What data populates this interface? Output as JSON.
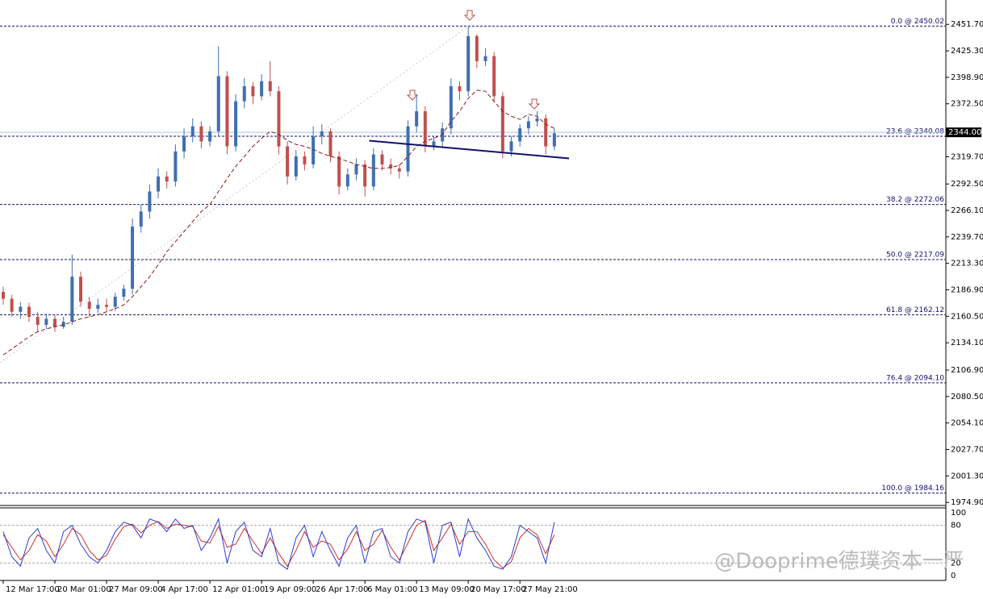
{
  "chart_data": {
    "type": "candlestick",
    "categories": [
      "12 Mar 17:00",
      null,
      null,
      null,
      null,
      null,
      "20 Mar 01:00",
      null,
      null,
      null,
      null,
      null,
      "27 Mar 09:00",
      null,
      null,
      null,
      null,
      null,
      "4 Apr 17:00",
      null,
      null,
      null,
      null,
      null,
      "12 Apr 01:00",
      null,
      null,
      null,
      null,
      null,
      "19 Apr 09:00",
      null,
      null,
      null,
      null,
      null,
      "26 Apr 17:00",
      null,
      null,
      null,
      null,
      null,
      "6 May 01:00",
      null,
      null,
      null,
      null,
      null,
      "13 May 09:00",
      null,
      null,
      null,
      null,
      null,
      "20 May 17:00",
      null,
      null,
      null,
      null,
      null,
      "27 May 21:00",
      null,
      null,
      null,
      null
    ],
    "open": [
      2185,
      2178,
      2165,
      2170,
      2160,
      2152,
      2158,
      2150,
      2155,
      2200,
      2175,
      2168,
      2172,
      2170,
      2180,
      2188,
      2250,
      2265,
      2285,
      2300,
      2295,
      2325,
      2340,
      2350,
      2335,
      2345,
      2400,
      2330,
      2375,
      2390,
      2380,
      2395,
      2385,
      2330,
      2300,
      2320,
      2312,
      2340,
      2345,
      2320,
      2290,
      2302,
      2312,
      2290,
      2322,
      2312,
      2308,
      2305,
      2350,
      2365,
      2330,
      2335,
      2348,
      2390,
      2385,
      2440,
      2415,
      2420,
      2380,
      2325,
      2335,
      2348,
      2355,
      2358,
      2330
    ],
    "high": [
      2190,
      2182,
      2175,
      2174,
      2165,
      2163,
      2162,
      2160,
      2222,
      2205,
      2180,
      2178,
      2178,
      2184,
      2192,
      2258,
      2272,
      2292,
      2308,
      2305,
      2332,
      2348,
      2358,
      2355,
      2350,
      2430,
      2405,
      2382,
      2398,
      2394,
      2402,
      2415,
      2390,
      2335,
      2326,
      2325,
      2350,
      2352,
      2348,
      2325,
      2308,
      2318,
      2316,
      2328,
      2326,
      2318,
      2312,
      2356,
      2382,
      2370,
      2340,
      2354,
      2398,
      2395,
      2450,
      2442,
      2428,
      2424,
      2384,
      2340,
      2352,
      2360,
      2365,
      2362,
      2348
    ],
    "low": [
      2172,
      2160,
      2158,
      2155,
      2145,
      2148,
      2145,
      2148,
      2152,
      2170,
      2160,
      2164,
      2165,
      2166,
      2176,
      2182,
      2244,
      2258,
      2278,
      2288,
      2290,
      2318,
      2334,
      2328,
      2330,
      2340,
      2322,
      2325,
      2368,
      2372,
      2376,
      2380,
      2322,
      2292,
      2296,
      2306,
      2308,
      2332,
      2314,
      2282,
      2286,
      2296,
      2280,
      2286,
      2306,
      2302,
      2298,
      2300,
      2344,
      2324,
      2326,
      2330,
      2342,
      2376,
      2380,
      2408,
      2410,
      2374,
      2318,
      2320,
      2330,
      2342,
      2350,
      2322,
      2326
    ],
    "close": [
      2178,
      2165,
      2170,
      2160,
      2152,
      2158,
      2150,
      2155,
      2200,
      2175,
      2168,
      2172,
      2170,
      2180,
      2188,
      2250,
      2265,
      2285,
      2300,
      2295,
      2325,
      2340,
      2350,
      2335,
      2345,
      2400,
      2330,
      2375,
      2390,
      2380,
      2395,
      2385,
      2330,
      2300,
      2320,
      2312,
      2340,
      2345,
      2320,
      2290,
      2302,
      2312,
      2290,
      2322,
      2312,
      2308,
      2305,
      2350,
      2365,
      2330,
      2335,
      2348,
      2390,
      2385,
      2440,
      2415,
      2420,
      2380,
      2325,
      2335,
      2348,
      2355,
      2358,
      2330,
      2343
    ],
    "up_color": "#3f6fb0",
    "down_color": "#c0504d",
    "ma": {
      "color": "#8b1a1a",
      "values": [
        2122,
        2128,
        2134,
        2140,
        2145,
        2148,
        2150,
        2152,
        2155,
        2158,
        2160,
        2162,
        2165,
        2168,
        2172,
        2180,
        2190,
        2200,
        2212,
        2225,
        2235,
        2245,
        2255,
        2265,
        2272,
        2285,
        2298,
        2310,
        2320,
        2330,
        2338,
        2345,
        2342,
        2336,
        2332,
        2330,
        2327,
        2323,
        2320,
        2318,
        2315,
        2312,
        2310,
        2308,
        2308,
        2309,
        2311,
        2320,
        2330,
        2335,
        2338,
        2342,
        2355,
        2365,
        2378,
        2386,
        2385,
        2375,
        2365,
        2360,
        2357,
        2362,
        2360,
        2352,
        2348
      ]
    },
    "trendline": {
      "color": "#10106e",
      "x": [
        42.5,
        65.7
      ],
      "y": [
        2335.7,
        2318
      ]
    },
    "ylim": [
      1971,
      2472
    ],
    "yticks": [
      {
        "value": 2451.7,
        "label": "2451.70"
      },
      {
        "value": 2425.3,
        "label": "2425.30"
      },
      {
        "value": 2398.9,
        "label": "2398.90"
      },
      {
        "value": 2372.5,
        "label": "2372.50"
      },
      {
        "value": 2319.7,
        "label": "2319.70"
      },
      {
        "value": 2292.5,
        "label": "2292.50"
      },
      {
        "value": 2266.1,
        "label": "2266.10"
      },
      {
        "value": 2239.7,
        "label": "2239.70"
      },
      {
        "value": 2213.3,
        "label": "2213.30"
      },
      {
        "value": 2186.9,
        "label": "2186.90"
      },
      {
        "value": 2160.5,
        "label": "2160.50"
      },
      {
        "value": 2134.1,
        "label": "2134.10"
      },
      {
        "value": 2106.9,
        "label": "2106.90"
      },
      {
        "value": 2080.5,
        "label": "2080.50"
      },
      {
        "value": 2054.1,
        "label": "2054.10"
      },
      {
        "value": 2027.7,
        "label": "2027.70"
      },
      {
        "value": 2001.3,
        "label": "2001.30"
      },
      {
        "value": 1974.9,
        "label": "1974.90"
      }
    ],
    "current_price": {
      "value": 2344,
      "label": "2344.00"
    },
    "fib_levels": [
      {
        "value": 2450.02,
        "label": "0.0 @ 2450.02"
      },
      {
        "value": 2340.08,
        "label": "23.6 @ 2340.08"
      },
      {
        "value": 2272.06,
        "label": "38.2 @ 2272.06"
      },
      {
        "value": 2217.09,
        "label": "50.0 @ 2217.09"
      },
      {
        "value": 2162.12,
        "label": "61.8 @ 2162.12"
      },
      {
        "value": 2094.1,
        "label": "76.4 @ 2094.10"
      },
      {
        "value": 1984.16,
        "label": "100.0 @ 1984.16"
      }
    ],
    "stochastic": {
      "ylim": [
        0,
        100
      ],
      "yticks": [
        100,
        80,
        20,
        0
      ],
      "main": {
        "color": "#2b3fd0",
        "values": [
          70,
          30,
          15,
          60,
          75,
          40,
          20,
          70,
          80,
          50,
          30,
          20,
          40,
          70,
          85,
          80,
          60,
          90,
          85,
          70,
          90,
          75,
          80,
          40,
          60,
          90,
          20,
          70,
          85,
          40,
          30,
          75,
          20,
          10,
          60,
          80,
          30,
          70,
          40,
          15,
          60,
          80,
          20,
          70,
          75,
          30,
          20,
          70,
          90,
          85,
          20,
          80,
          85,
          30,
          90,
          60,
          40,
          15,
          10,
          30,
          80,
          70,
          60,
          20,
          85
        ]
      },
      "signal": {
        "color": "#d03030",
        "values": [
          65,
          45,
          25,
          40,
          65,
          55,
          30,
          50,
          75,
          65,
          40,
          25,
          32,
          58,
          78,
          82,
          68,
          80,
          86,
          75,
          82,
          80,
          78,
          55,
          52,
          78,
          45,
          50,
          75,
          55,
          35,
          60,
          35,
          15,
          40,
          70,
          45,
          55,
          50,
          25,
          42,
          70,
          40,
          50,
          72,
          45,
          25,
          52,
          80,
          88,
          40,
          60,
          82,
          50,
          70,
          70,
          50,
          25,
          12,
          22,
          60,
          75,
          65,
          35,
          65
        ]
      }
    },
    "watermark": "@Dooprime德璞资本一严"
  }
}
